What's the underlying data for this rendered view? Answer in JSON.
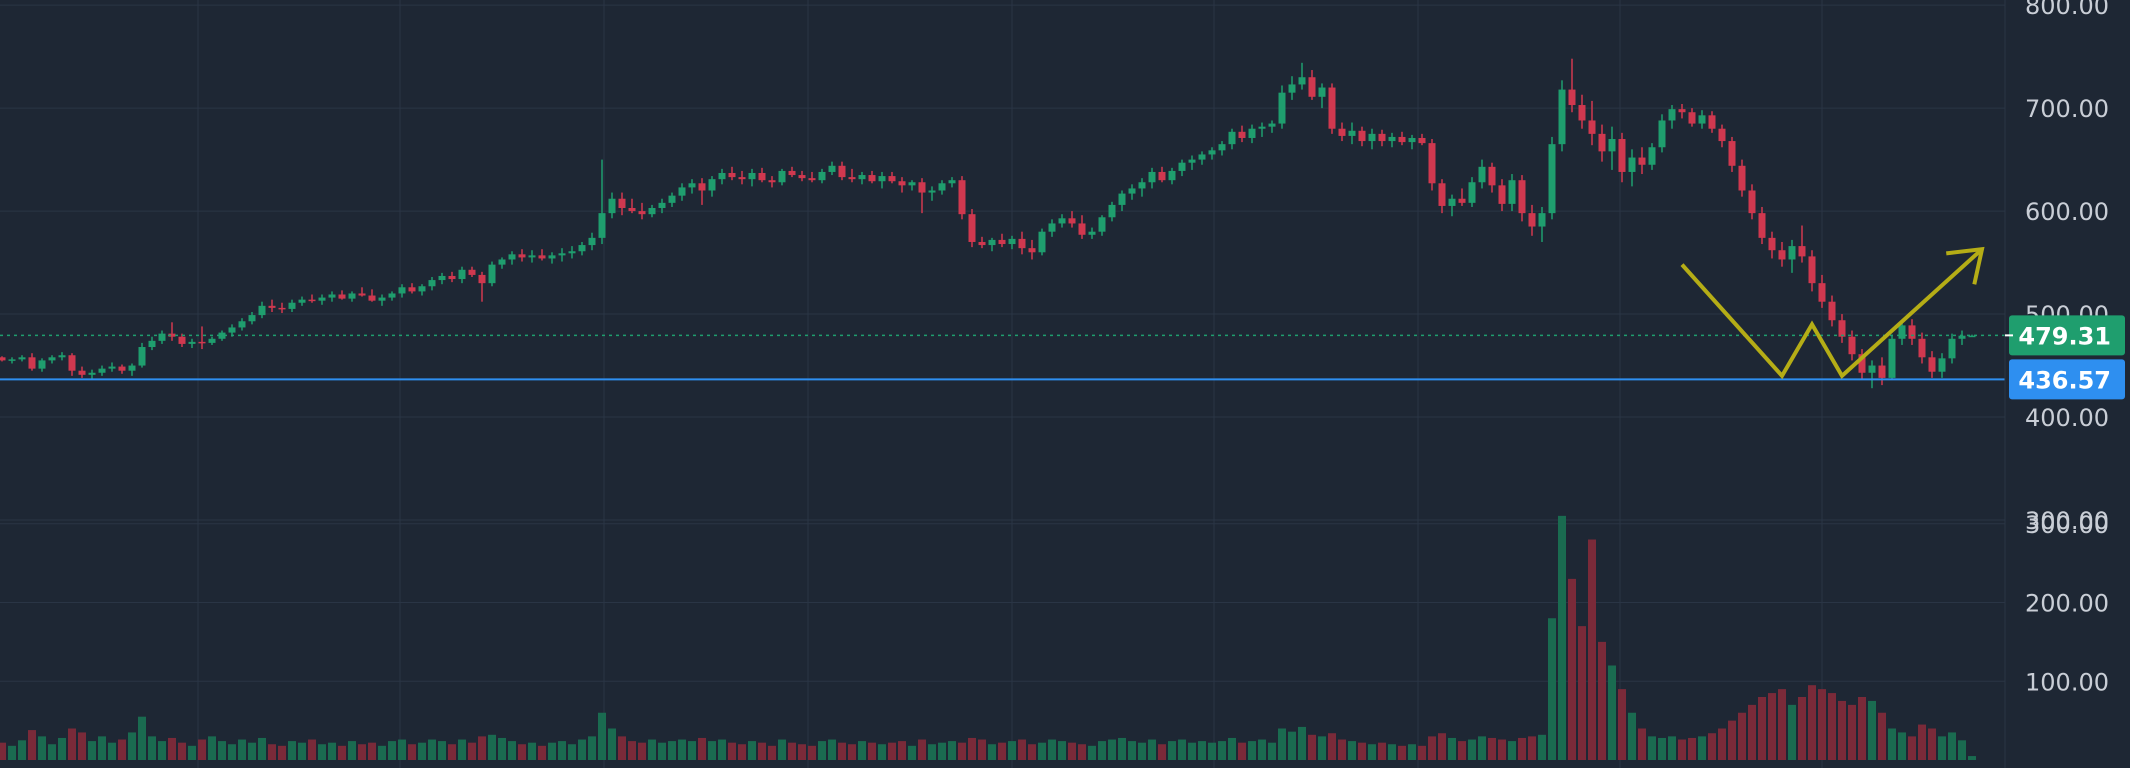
{
  "chart_data": {
    "type": "candlestick",
    "y_axis": {
      "ticks": [
        "300.00",
        "400.00",
        "500.00",
        "600.00",
        "700.00",
        "800.00"
      ],
      "tick_values": [
        300,
        400,
        500,
        600,
        700,
        800
      ],
      "volume_ticks": [
        "100.00",
        "200.00",
        "300.00"
      ],
      "volume_tick_values": [
        100,
        200,
        300
      ],
      "ylim": [
        300,
        805
      ],
      "volume_ylim": [
        0,
        320
      ]
    },
    "current_price": {
      "label": "479.31",
      "value": 479.31
    },
    "support_level": {
      "label": "436.57",
      "value": 436.57
    },
    "colors": {
      "background": "#1e2734",
      "grid": "#2a3545",
      "up": "#1f9e6e",
      "down": "#d0384f",
      "up_volume": "#1a6b50",
      "down_volume": "#7a2a39",
      "support_line": "#2e8ff0",
      "current_line": "#1f9e6e",
      "drawing": "#b5ad16"
    },
    "drawing": {
      "type": "forecast-path",
      "points": [
        {
          "bar": 168,
          "price": 548
        },
        {
          "bar": 178,
          "price": 440
        },
        {
          "bar": 181,
          "price": 490
        },
        {
          "bar": 184,
          "price": 440
        },
        {
          "bar": 198,
          "price": 563
        }
      ]
    },
    "candles": [
      [
        458,
        459,
        454,
        455,
        22
      ],
      [
        455,
        458,
        452,
        456,
        18
      ],
      [
        456,
        460,
        454,
        458,
        25
      ],
      [
        458,
        462,
        445,
        447,
        38
      ],
      [
        447,
        457,
        444,
        455,
        30
      ],
      [
        455,
        460,
        452,
        458,
        20
      ],
      [
        458,
        463,
        455,
        460,
        28
      ],
      [
        460,
        462,
        440,
        445,
        40
      ],
      [
        445,
        449,
        438,
        441,
        35
      ],
      [
        441,
        446,
        436,
        443,
        24
      ],
      [
        443,
        450,
        440,
        447,
        30
      ],
      [
        447,
        453,
        444,
        449,
        22
      ],
      [
        449,
        451,
        442,
        445,
        26
      ],
      [
        445,
        452,
        440,
        450,
        35
      ],
      [
        450,
        472,
        448,
        468,
        55
      ],
      [
        468,
        478,
        465,
        474,
        30
      ],
      [
        474,
        484,
        471,
        481,
        24
      ],
      [
        481,
        492,
        474,
        478,
        28
      ],
      [
        478,
        481,
        468,
        471,
        22
      ],
      [
        471,
        476,
        467,
        473,
        18
      ],
      [
        473,
        488,
        466,
        472,
        26
      ],
      [
        472,
        478,
        470,
        476,
        30
      ],
      [
        476,
        484,
        474,
        482,
        24
      ],
      [
        482,
        490,
        478,
        487,
        20
      ],
      [
        487,
        496,
        484,
        493,
        26
      ],
      [
        493,
        502,
        490,
        499,
        22
      ],
      [
        499,
        512,
        496,
        508,
        28
      ],
      [
        508,
        514,
        502,
        506,
        20
      ],
      [
        506,
        511,
        501,
        505,
        18
      ],
      [
        505,
        514,
        502,
        511,
        24
      ],
      [
        511,
        517,
        508,
        514,
        22
      ],
      [
        514,
        519,
        511,
        513,
        26
      ],
      [
        513,
        519,
        509,
        516,
        20
      ],
      [
        516,
        522,
        512,
        519,
        22
      ],
      [
        519,
        523,
        514,
        515,
        18
      ],
      [
        515,
        522,
        512,
        520,
        24
      ],
      [
        520,
        526,
        517,
        518,
        20
      ],
      [
        518,
        524,
        512,
        513,
        22
      ],
      [
        513,
        519,
        508,
        516,
        18
      ],
      [
        516,
        522,
        513,
        520,
        24
      ],
      [
        520,
        529,
        516,
        526,
        26
      ],
      [
        526,
        530,
        520,
        522,
        20
      ],
      [
        522,
        529,
        518,
        527,
        22
      ],
      [
        527,
        536,
        523,
        533,
        26
      ],
      [
        533,
        540,
        529,
        537,
        24
      ],
      [
        537,
        541,
        531,
        534,
        20
      ],
      [
        534,
        546,
        530,
        543,
        26
      ],
      [
        543,
        546,
        536,
        538,
        22
      ],
      [
        538,
        541,
        512,
        530,
        30
      ],
      [
        530,
        551,
        527,
        548,
        32
      ],
      [
        548,
        555,
        544,
        553,
        28
      ],
      [
        553,
        561,
        548,
        558,
        24
      ],
      [
        558,
        563,
        551,
        555,
        20
      ],
      [
        555,
        562,
        550,
        557,
        22
      ],
      [
        557,
        563,
        552,
        554,
        18
      ],
      [
        554,
        560,
        549,
        557,
        22
      ],
      [
        557,
        564,
        551,
        559,
        24
      ],
      [
        559,
        566,
        554,
        561,
        20
      ],
      [
        561,
        570,
        557,
        567,
        26
      ],
      [
        567,
        579,
        562,
        574,
        30
      ],
      [
        574,
        650,
        568,
        598,
        60
      ],
      [
        598,
        618,
        593,
        612,
        40
      ],
      [
        612,
        618,
        596,
        603,
        30
      ],
      [
        603,
        612,
        598,
        600,
        24
      ],
      [
        600,
        608,
        592,
        597,
        22
      ],
      [
        597,
        606,
        594,
        603,
        26
      ],
      [
        603,
        612,
        598,
        608,
        22
      ],
      [
        608,
        618,
        604,
        615,
        24
      ],
      [
        615,
        627,
        610,
        623,
        26
      ],
      [
        623,
        631,
        617,
        627,
        24
      ],
      [
        627,
        632,
        606,
        620,
        28
      ],
      [
        620,
        634,
        614,
        631,
        24
      ],
      [
        631,
        641,
        626,
        637,
        26
      ],
      [
        637,
        643,
        630,
        633,
        22
      ],
      [
        633,
        639,
        626,
        631,
        20
      ],
      [
        631,
        641,
        624,
        637,
        24
      ],
      [
        637,
        642,
        628,
        630,
        22
      ],
      [
        630,
        634,
        623,
        628,
        18
      ],
      [
        628,
        641,
        625,
        639,
        26
      ],
      [
        639,
        643,
        633,
        635,
        22
      ],
      [
        635,
        639,
        629,
        632,
        20
      ],
      [
        632,
        638,
        628,
        630,
        18
      ],
      [
        630,
        641,
        627,
        638,
        24
      ],
      [
        638,
        648,
        635,
        644,
        26
      ],
      [
        644,
        648,
        630,
        633,
        22
      ],
      [
        633,
        641,
        628,
        631,
        20
      ],
      [
        631,
        638,
        626,
        635,
        24
      ],
      [
        635,
        639,
        627,
        629,
        22
      ],
      [
        629,
        638,
        622,
        634,
        20
      ],
      [
        634,
        638,
        627,
        629,
        22
      ],
      [
        629,
        633,
        618,
        625,
        24
      ],
      [
        625,
        630,
        620,
        628,
        18
      ],
      [
        628,
        632,
        598,
        618,
        26
      ],
      [
        618,
        624,
        610,
        620,
        20
      ],
      [
        620,
        630,
        616,
        627,
        22
      ],
      [
        627,
        633,
        623,
        630,
        24
      ],
      [
        630,
        634,
        592,
        597,
        22
      ],
      [
        597,
        602,
        565,
        570,
        28
      ],
      [
        570,
        575,
        564,
        567,
        26
      ],
      [
        567,
        574,
        561,
        572,
        20
      ],
      [
        572,
        578,
        565,
        568,
        22
      ],
      [
        568,
        576,
        563,
        573,
        24
      ],
      [
        573,
        580,
        558,
        564,
        26
      ],
      [
        564,
        572,
        553,
        560,
        20
      ],
      [
        560,
        583,
        557,
        580,
        22
      ],
      [
        580,
        592,
        575,
        588,
        26
      ],
      [
        588,
        597,
        584,
        593,
        24
      ],
      [
        593,
        600,
        584,
        588,
        22
      ],
      [
        588,
        596,
        573,
        577,
        20
      ],
      [
        577,
        584,
        573,
        580,
        18
      ],
      [
        580,
        596,
        576,
        594,
        24
      ],
      [
        594,
        609,
        590,
        606,
        26
      ],
      [
        606,
        620,
        600,
        617,
        28
      ],
      [
        617,
        626,
        611,
        622,
        24
      ],
      [
        622,
        632,
        614,
        628,
        22
      ],
      [
        628,
        642,
        622,
        638,
        26
      ],
      [
        638,
        643,
        628,
        630,
        20
      ],
      [
        630,
        642,
        626,
        639,
        24
      ],
      [
        639,
        650,
        634,
        647,
        26
      ],
      [
        647,
        654,
        640,
        650,
        22
      ],
      [
        650,
        658,
        645,
        655,
        24
      ],
      [
        655,
        662,
        650,
        659,
        22
      ],
      [
        659,
        668,
        654,
        665,
        24
      ],
      [
        665,
        680,
        660,
        677,
        28
      ],
      [
        677,
        683,
        667,
        671,
        22
      ],
      [
        671,
        684,
        666,
        680,
        24
      ],
      [
        680,
        686,
        672,
        682,
        26
      ],
      [
        682,
        688,
        676,
        685,
        22
      ],
      [
        685,
        722,
        680,
        715,
        40
      ],
      [
        715,
        731,
        708,
        723,
        36
      ],
      [
        723,
        744,
        718,
        730,
        42
      ],
      [
        730,
        737,
        708,
        711,
        32
      ],
      [
        711,
        724,
        700,
        720,
        30
      ],
      [
        720,
        724,
        675,
        680,
        34
      ],
      [
        680,
        686,
        668,
        673,
        26
      ],
      [
        673,
        686,
        665,
        678,
        24
      ],
      [
        678,
        682,
        663,
        668,
        22
      ],
      [
        668,
        680,
        660,
        675,
        20
      ],
      [
        675,
        679,
        663,
        668,
        22
      ],
      [
        668,
        676,
        662,
        672,
        20
      ],
      [
        672,
        677,
        664,
        667,
        18
      ],
      [
        667,
        674,
        660,
        671,
        20
      ],
      [
        671,
        675,
        664,
        666,
        18
      ],
      [
        666,
        670,
        620,
        627,
        30
      ],
      [
        627,
        631,
        598,
        605,
        34
      ],
      [
        605,
        616,
        595,
        612,
        28
      ],
      [
        612,
        622,
        605,
        608,
        24
      ],
      [
        608,
        633,
        604,
        628,
        26
      ],
      [
        628,
        650,
        622,
        643,
        30
      ],
      [
        643,
        647,
        618,
        625,
        28
      ],
      [
        625,
        631,
        600,
        607,
        26
      ],
      [
        607,
        636,
        600,
        630,
        24
      ],
      [
        630,
        635,
        590,
        598,
        28
      ],
      [
        598,
        606,
        576,
        585,
        30
      ],
      [
        585,
        604,
        570,
        598,
        32
      ],
      [
        598,
        672,
        592,
        665,
        180
      ],
      [
        665,
        727,
        658,
        718,
        310
      ],
      [
        718,
        748,
        696,
        703,
        230
      ],
      [
        703,
        713,
        680,
        688,
        170
      ],
      [
        688,
        707,
        664,
        675,
        280
      ],
      [
        675,
        684,
        648,
        658,
        150
      ],
      [
        658,
        682,
        640,
        670,
        120
      ],
      [
        670,
        676,
        628,
        638,
        90
      ],
      [
        638,
        660,
        624,
        652,
        60
      ],
      [
        652,
        662,
        636,
        645,
        40
      ],
      [
        645,
        666,
        640,
        662,
        30
      ],
      [
        662,
        694,
        657,
        688,
        28
      ],
      [
        688,
        703,
        680,
        699,
        30
      ],
      [
        699,
        704,
        690,
        696,
        26
      ],
      [
        696,
        700,
        682,
        685,
        28
      ],
      [
        685,
        698,
        680,
        693,
        30
      ],
      [
        693,
        697,
        676,
        680,
        34
      ],
      [
        680,
        684,
        662,
        668,
        40
      ],
      [
        668,
        672,
        638,
        644,
        50
      ],
      [
        644,
        650,
        614,
        620,
        60
      ],
      [
        620,
        626,
        592,
        598,
        70
      ],
      [
        598,
        604,
        568,
        574,
        80
      ],
      [
        574,
        580,
        554,
        562,
        85
      ],
      [
        562,
        570,
        546,
        553,
        90
      ],
      [
        553,
        572,
        540,
        566,
        70
      ],
      [
        566,
        586,
        550,
        556,
        80
      ],
      [
        556,
        562,
        522,
        530,
        95
      ],
      [
        530,
        538,
        506,
        512,
        90
      ],
      [
        512,
        518,
        488,
        494,
        85
      ],
      [
        494,
        500,
        472,
        478,
        75
      ],
      [
        478,
        484,
        455,
        461,
        70
      ],
      [
        461,
        466,
        437,
        443,
        80
      ],
      [
        443,
        455,
        428,
        450,
        75
      ],
      [
        450,
        458,
        431,
        438,
        60
      ],
      [
        438,
        480,
        436,
        476,
        40
      ],
      [
        476,
        494,
        470,
        489,
        35
      ],
      [
        489,
        495,
        470,
        476,
        30
      ],
      [
        476,
        482,
        452,
        458,
        45
      ],
      [
        458,
        464,
        438,
        444,
        40
      ],
      [
        444,
        462,
        438,
        457,
        30
      ],
      [
        457,
        481,
        452,
        476,
        35
      ],
      [
        476,
        484,
        470,
        479,
        25
      ],
      [
        479,
        480,
        478,
        479,
        5
      ]
    ]
  }
}
